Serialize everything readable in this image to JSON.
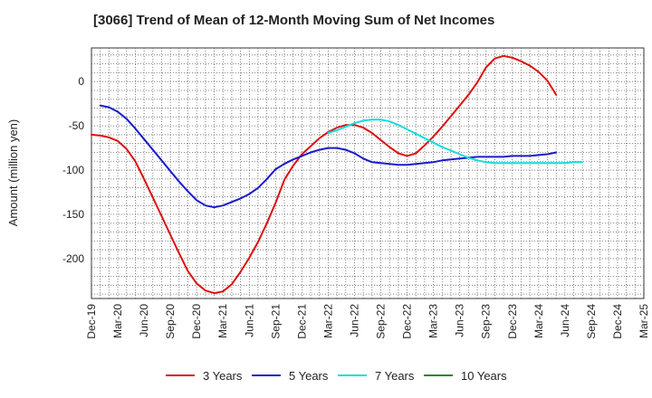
{
  "chart_data": {
    "type": "line",
    "title": "[3066]  Trend of Mean of 12-Month Moving Sum of Net Incomes",
    "xlabel": "",
    "ylabel": "Amount (million yen)",
    "ylim": [
      -245,
      38
    ],
    "yticks": [
      0,
      -50,
      -100,
      -150,
      -200
    ],
    "x_ticks": [
      "Dec-19",
      "Mar-20",
      "Jun-20",
      "Sep-20",
      "Dec-20",
      "Mar-21",
      "Jun-21",
      "Sep-21",
      "Dec-21",
      "Mar-22",
      "Jun-22",
      "Sep-22",
      "Dec-22",
      "Mar-23",
      "Jun-23",
      "Sep-23",
      "Dec-23",
      "Mar-24",
      "Jun-24",
      "Sep-24",
      "Dec-24",
      "Mar-25"
    ],
    "grid": true,
    "legend_position": "bottom",
    "series": [
      {
        "name": "3 Years",
        "color": "#dd1111",
        "points": [
          [
            "Dec-19",
            -60
          ],
          [
            "Jan-20",
            -61
          ],
          [
            "Feb-20",
            -63
          ],
          [
            "Mar-20",
            -67
          ],
          [
            "Apr-20",
            -76
          ],
          [
            "May-20",
            -90
          ],
          [
            "Jun-20",
            -110
          ],
          [
            "Jul-20",
            -131
          ],
          [
            "Aug-20",
            -152
          ],
          [
            "Sep-20",
            -173
          ],
          [
            "Oct-20",
            -194
          ],
          [
            "Nov-20",
            -214
          ],
          [
            "Dec-20",
            -228
          ],
          [
            "Jan-21",
            -236
          ],
          [
            "Feb-21",
            -239
          ],
          [
            "Mar-21",
            -237
          ],
          [
            "Apr-21",
            -229
          ],
          [
            "May-21",
            -215
          ],
          [
            "Jun-21",
            -199
          ],
          [
            "Jul-21",
            -181
          ],
          [
            "Aug-21",
            -160
          ],
          [
            "Sep-21",
            -137
          ],
          [
            "Oct-21",
            -111
          ],
          [
            "Nov-21",
            -95
          ],
          [
            "Dec-21",
            -82
          ],
          [
            "Jan-22",
            -73
          ],
          [
            "Feb-22",
            -64
          ],
          [
            "Mar-22",
            -57
          ],
          [
            "Apr-22",
            -52
          ],
          [
            "May-22",
            -49
          ],
          [
            "Jun-22",
            -49
          ],
          [
            "Jul-22",
            -52
          ],
          [
            "Aug-22",
            -58
          ],
          [
            "Sep-22",
            -66
          ],
          [
            "Oct-22",
            -74
          ],
          [
            "Nov-22",
            -81
          ],
          [
            "Dec-22",
            -84
          ],
          [
            "Jan-23",
            -81
          ],
          [
            "Feb-23",
            -72
          ],
          [
            "Mar-23",
            -62
          ],
          [
            "Apr-23",
            -51
          ],
          [
            "May-23",
            -39
          ],
          [
            "Jun-23",
            -27
          ],
          [
            "Jul-23",
            -15
          ],
          [
            "Aug-23",
            -1
          ],
          [
            "Sep-23",
            16
          ],
          [
            "Oct-23",
            26
          ],
          [
            "Nov-23",
            29
          ],
          [
            "Dec-23",
            27
          ],
          [
            "Jan-24",
            23
          ],
          [
            "Feb-24",
            18
          ],
          [
            "Mar-24",
            11
          ],
          [
            "Apr-24",
            1
          ],
          [
            "May-24",
            -15
          ]
        ]
      },
      {
        "name": "5 Years",
        "color": "#1a1acc",
        "points": [
          [
            "Jan-20",
            -27
          ],
          [
            "Feb-20",
            -29
          ],
          [
            "Mar-20",
            -34
          ],
          [
            "Apr-20",
            -42
          ],
          [
            "May-20",
            -53
          ],
          [
            "Jun-20",
            -65
          ],
          [
            "Jul-20",
            -77
          ],
          [
            "Aug-20",
            -89
          ],
          [
            "Sep-20",
            -101
          ],
          [
            "Oct-20",
            -113
          ],
          [
            "Nov-20",
            -124
          ],
          [
            "Dec-20",
            -134
          ],
          [
            "Jan-21",
            -140
          ],
          [
            "Feb-21",
            -142
          ],
          [
            "Mar-21",
            -140
          ],
          [
            "Apr-21",
            -136
          ],
          [
            "May-21",
            -132
          ],
          [
            "Jun-21",
            -127
          ],
          [
            "Jul-21",
            -120
          ],
          [
            "Aug-21",
            -110
          ],
          [
            "Sep-21",
            -99
          ],
          [
            "Oct-21",
            -93
          ],
          [
            "Nov-21",
            -88
          ],
          [
            "Dec-21",
            -84
          ],
          [
            "Jan-22",
            -80
          ],
          [
            "Feb-22",
            -77
          ],
          [
            "Mar-22",
            -75
          ],
          [
            "Apr-22",
            -75
          ],
          [
            "May-22",
            -77
          ],
          [
            "Jun-22",
            -81
          ],
          [
            "Jul-22",
            -87
          ],
          [
            "Aug-22",
            -91
          ],
          [
            "Sep-22",
            -92
          ],
          [
            "Oct-22",
            -93
          ],
          [
            "Nov-22",
            -94
          ],
          [
            "Dec-22",
            -94
          ],
          [
            "Jan-23",
            -93
          ],
          [
            "Feb-23",
            -92
          ],
          [
            "Mar-23",
            -91
          ],
          [
            "Apr-23",
            -89
          ],
          [
            "May-23",
            -88
          ],
          [
            "Jun-23",
            -87
          ],
          [
            "Jul-23",
            -86
          ],
          [
            "Aug-23",
            -85
          ],
          [
            "Sep-23",
            -85
          ],
          [
            "Oct-23",
            -85
          ],
          [
            "Nov-23",
            -85
          ],
          [
            "Dec-23",
            -84
          ],
          [
            "Jan-24",
            -84
          ],
          [
            "Feb-24",
            -84
          ],
          [
            "Mar-24",
            -83
          ],
          [
            "Apr-24",
            -82
          ],
          [
            "May-24",
            -80
          ]
        ]
      },
      {
        "name": "7 Years",
        "color": "#11dddd",
        "points": [
          [
            "Mar-22",
            -58
          ],
          [
            "Apr-22",
            -55
          ],
          [
            "May-22",
            -51
          ],
          [
            "Jun-22",
            -47
          ],
          [
            "Jul-22",
            -44
          ],
          [
            "Aug-22",
            -43
          ],
          [
            "Sep-22",
            -43
          ],
          [
            "Oct-22",
            -45
          ],
          [
            "Nov-22",
            -49
          ],
          [
            "Dec-22",
            -54
          ],
          [
            "Jan-23",
            -59
          ],
          [
            "Feb-23",
            -64
          ],
          [
            "Mar-23",
            -69
          ],
          [
            "Apr-23",
            -74
          ],
          [
            "May-23",
            -78
          ],
          [
            "Jun-23",
            -82
          ],
          [
            "Jul-23",
            -86
          ],
          [
            "Aug-23",
            -89
          ],
          [
            "Sep-23",
            -91
          ],
          [
            "Oct-23",
            -92
          ],
          [
            "Nov-23",
            -92
          ],
          [
            "Dec-23",
            -92
          ],
          [
            "Jan-24",
            -92
          ],
          [
            "Feb-24",
            -92
          ],
          [
            "Mar-24",
            -92
          ],
          [
            "Apr-24",
            -92
          ],
          [
            "May-24",
            -92
          ],
          [
            "Jun-24",
            -92
          ],
          [
            "Jul-24",
            -91
          ],
          [
            "Aug-24",
            -91
          ]
        ]
      },
      {
        "name": "10 Years",
        "color": "#228822",
        "points": []
      }
    ]
  }
}
